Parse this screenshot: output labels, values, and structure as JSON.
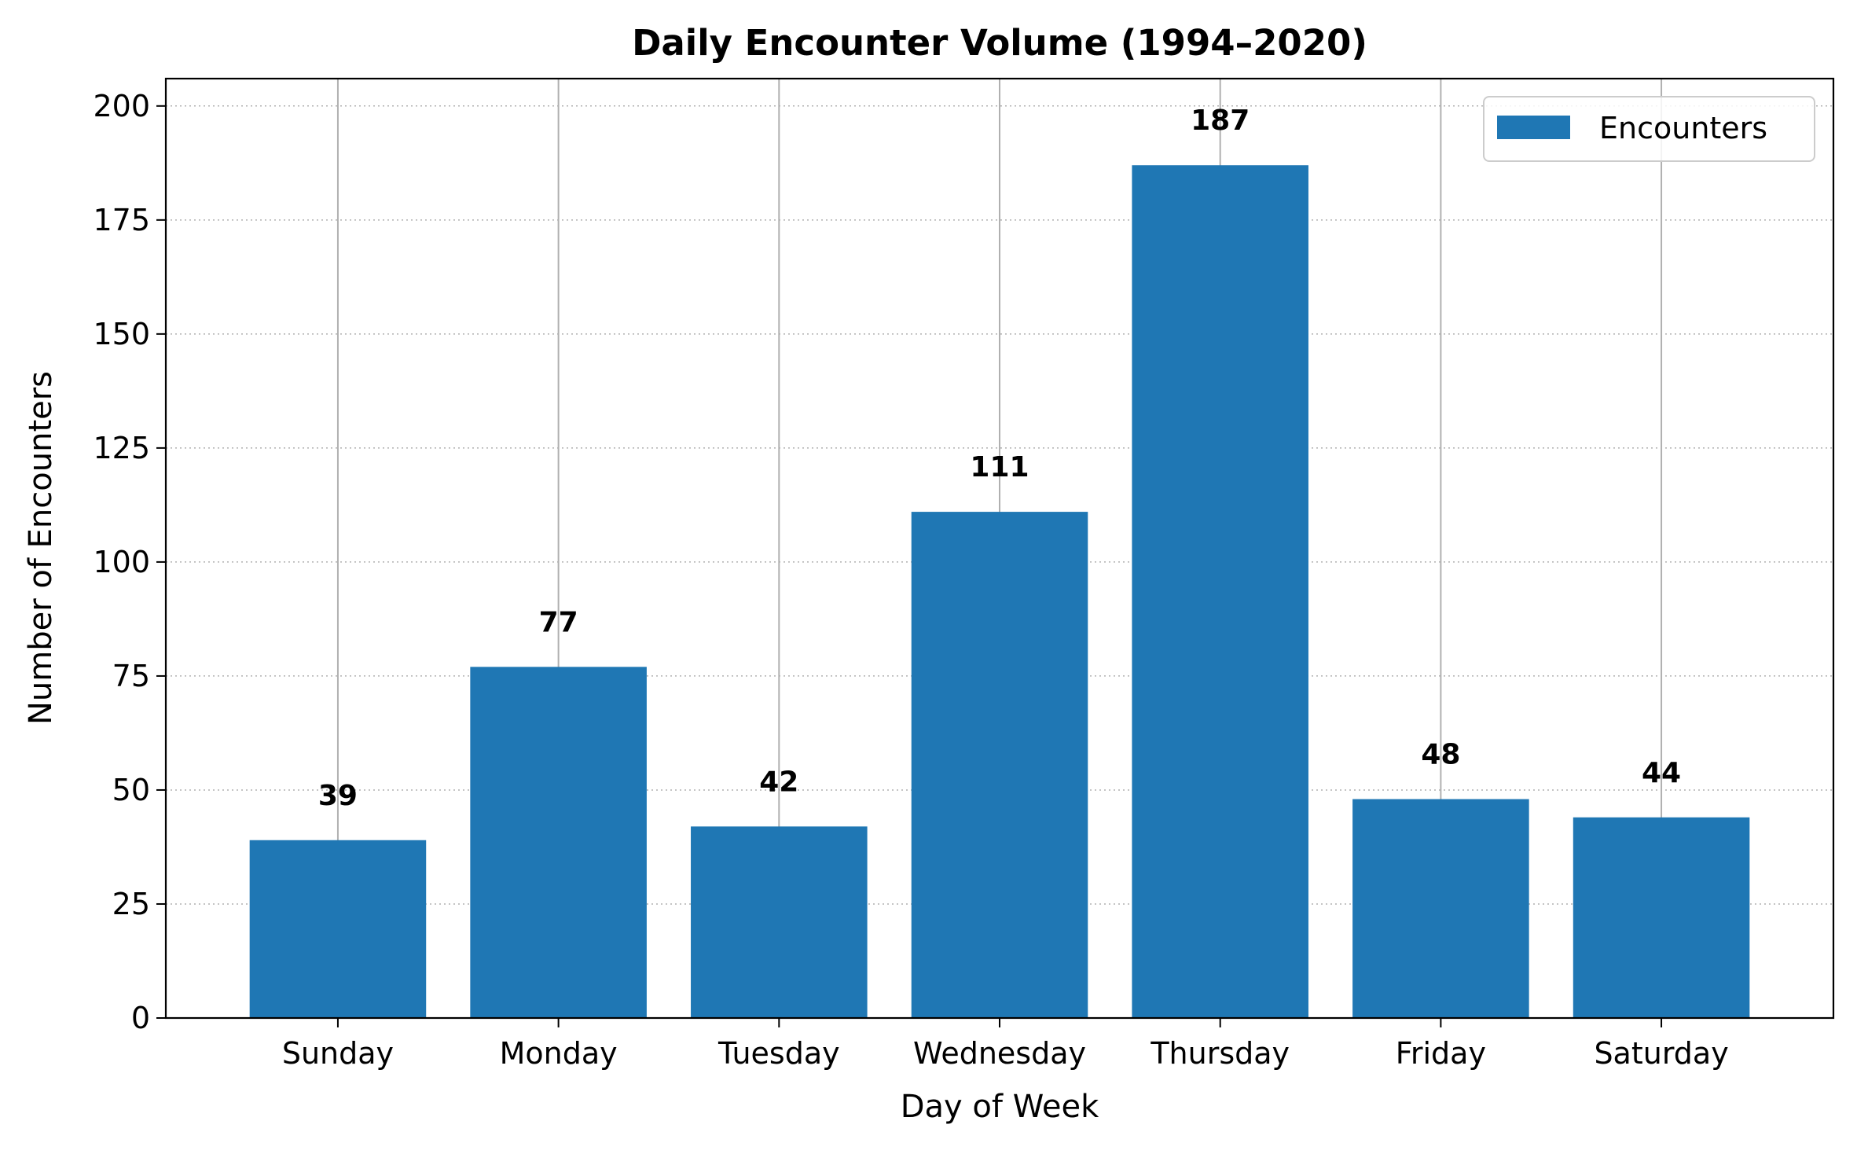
{
  "chart_data": {
    "type": "bar",
    "title": "Daily Encounter Volume (1994–2020)",
    "xlabel": "Day of Week",
    "ylabel": "Number of Encounters",
    "categories": [
      "Sunday",
      "Monday",
      "Tuesday",
      "Wednesday",
      "Thursday",
      "Friday",
      "Saturday"
    ],
    "series": [
      {
        "name": "Encounters",
        "values": [
          39,
          77,
          42,
          111,
          187,
          48,
          44
        ],
        "color": "#1f77b4"
      }
    ],
    "ylim": [
      0,
      206
    ],
    "yticks": [
      0,
      25,
      50,
      75,
      100,
      125,
      150,
      175,
      200
    ],
    "grid": true,
    "legend_position": "top-right",
    "data_labels": true
  }
}
